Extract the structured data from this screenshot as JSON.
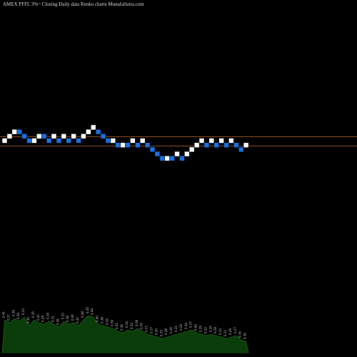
{
  "title": "AMEX  PFFL  3%~  Closing Daily data  Renko  charts MunafaSutra.com",
  "colors": {
    "background": "#000000",
    "up_brick": "#ffffff",
    "down_brick": "#1a6fe0",
    "resistance_line": "#8b4a1a",
    "volume_area": "#0a3d0a",
    "volume_text": "#c8c8c8"
  },
  "chart_data": {
    "type": "renko",
    "title": "AMEX  PFFL  3%~  Closing Daily data  Renko  charts MunafaSutra.com",
    "xlabel": "",
    "ylabel": "",
    "grid": false,
    "brick_levels": [
      0,
      1,
      2,
      2,
      1,
      0,
      0,
      1,
      1,
      0,
      1,
      0,
      1,
      0,
      1,
      0,
      1,
      2,
      3,
      2,
      1,
      0,
      0,
      -1,
      -1,
      -1,
      0,
      -1,
      0,
      -1,
      -2,
      -3,
      -4,
      -4,
      -4,
      -3,
      -4,
      -3,
      -2,
      -1,
      0,
      -1,
      0,
      -1,
      0,
      -1,
      0,
      -1,
      -2,
      -1
    ],
    "brick_directions": [
      "up",
      "up",
      "up",
      "down",
      "down",
      "down",
      "up",
      "up",
      "down",
      "down",
      "up",
      "down",
      "up",
      "down",
      "up",
      "down",
      "up",
      "up",
      "up",
      "down",
      "down",
      "down",
      "up",
      "down",
      "up",
      "down",
      "up",
      "down",
      "up",
      "down",
      "down",
      "down",
      "down",
      "up",
      "down",
      "up",
      "down",
      "up",
      "up",
      "up",
      "up",
      "down",
      "up",
      "down",
      "up",
      "down",
      "up",
      "down",
      "down",
      "up"
    ],
    "reference_lines": [
      "upper",
      "lower"
    ],
    "volume": {
      "values": [
        46,
        42,
        48,
        44,
        50,
        38,
        46,
        42,
        40,
        44,
        40,
        36,
        44,
        40,
        42,
        38,
        46,
        52,
        50,
        40,
        38,
        36,
        34,
        30,
        28,
        32,
        30,
        34,
        30,
        26,
        24,
        22,
        20,
        22,
        24,
        26,
        28,
        30,
        32,
        28,
        26,
        24,
        26,
        24,
        22,
        20,
        22,
        24,
        18,
        16
      ],
      "labels": [
        "0.41",
        "0.37",
        "0.38",
        "0.39",
        "0.33",
        "0.30",
        "0.35",
        "0.41",
        "0.28",
        "0.34",
        "0.31",
        "0.36",
        "0.33",
        "0.38",
        "0.40",
        "0.42",
        "0.48",
        "0.45",
        "0.44",
        "0.40",
        "0.38",
        "0.35",
        "0.39",
        "0.41",
        "0.36",
        "0.34",
        "0.32",
        "0.38",
        "0.29",
        "0.31",
        "0.27",
        "0.30",
        "0.33",
        "0.28",
        "0.26",
        "0.31",
        "0.29",
        "0.34",
        "0.37",
        "0.40",
        "0.35",
        "0.32",
        "0.30",
        "0.28",
        "0.33",
        "0.31",
        "0.29",
        "0.27",
        "0.34",
        "0.36"
      ]
    }
  }
}
